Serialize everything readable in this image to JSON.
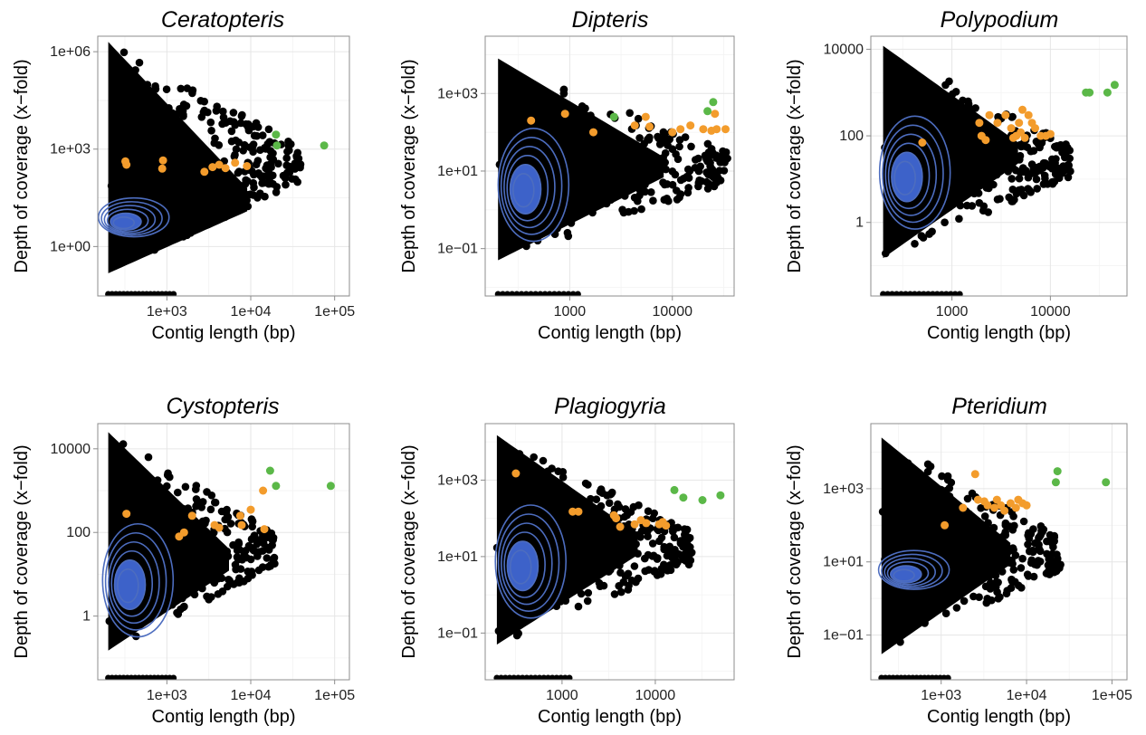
{
  "figure": {
    "colors": {
      "bulk": "#000000",
      "orange": "#f39c2c",
      "green": "#5bb848",
      "contour": "#4d6dbf",
      "contour_fill": "#3d62c9"
    }
  },
  "chart_data": [
    {
      "type": "scatter",
      "title": "Ceratopteris",
      "xlabel": "Contig length (bp)",
      "ylabel": "Depth of coverage (x−fold)",
      "log_x": true,
      "log_y": true,
      "xlim": [
        150,
        150000
      ],
      "ylim": [
        0.03,
        3000000
      ],
      "xticks": [
        {
          "v": 1000,
          "label": "1e+03"
        },
        {
          "v": 10000,
          "label": "1e+04"
        },
        {
          "v": 100000,
          "label": "1e+05"
        }
      ],
      "yticks": [
        {
          "v": 1,
          "label": "1e+00"
        },
        {
          "v": 1000,
          "label": "1e+03"
        },
        {
          "v": 1000000,
          "label": "1e+06"
        }
      ],
      "bulk": {
        "xmin": 200,
        "xmax": 40000,
        "ylo": 0.15,
        "yhi": 2000000,
        "peak_x": 250,
        "peak_y": 5
      },
      "orange": [
        [
          320,
          420
        ],
        [
          330,
          330
        ],
        [
          880,
          250
        ],
        [
          900,
          450
        ],
        [
          2800,
          200
        ],
        [
          3500,
          280
        ],
        [
          4200,
          330
        ],
        [
          5000,
          260
        ],
        [
          6500,
          380
        ],
        [
          9000,
          300
        ]
      ],
      "green": [
        [
          20000,
          2800
        ],
        [
          20500,
          1300
        ],
        [
          75000,
          1300
        ]
      ]
    },
    {
      "type": "scatter",
      "title": "Dipteris",
      "xlabel": "Contig length (bp)",
      "ylabel": "Depth of coverage (x−fold)",
      "log_x": true,
      "log_y": true,
      "xlim": [
        150,
        40000
      ],
      "ylim": [
        0.006,
        30000
      ],
      "xticks": [
        {
          "v": 1000,
          "label": "1000"
        },
        {
          "v": 10000,
          "label": "10000"
        }
      ],
      "yticks": [
        {
          "v": 0.1,
          "label": "1e−01"
        },
        {
          "v": 10,
          "label": "1e+01"
        },
        {
          "v": 1000,
          "label": "1e+03"
        }
      ],
      "bulk": {
        "xmin": 200,
        "xmax": 35000,
        "ylo": 0.05,
        "yhi": 8000,
        "peak_x": 300,
        "peak_y": 3
      },
      "orange": [
        [
          420,
          200
        ],
        [
          900,
          300
        ],
        [
          1700,
          100
        ],
        [
          4300,
          150
        ],
        [
          5500,
          250
        ],
        [
          6000,
          140
        ],
        [
          10000,
          100
        ],
        [
          12000,
          120
        ],
        [
          15000,
          150
        ],
        [
          20000,
          120
        ],
        [
          24000,
          110
        ],
        [
          26000,
          300
        ],
        [
          27000,
          120
        ],
        [
          33000,
          120
        ]
      ],
      "green": [
        [
          2700,
          250
        ],
        [
          22000,
          350
        ],
        [
          25000,
          600
        ]
      ]
    },
    {
      "type": "scatter",
      "title": "Polypodium",
      "xlabel": "Contig length (bp)",
      "ylabel": "Depth of coverage (x−fold)",
      "log_x": true,
      "log_y": true,
      "xlim": [
        150,
        60000
      ],
      "ylim": [
        0.02,
        20000
      ],
      "xticks": [
        {
          "v": 1000,
          "label": "1000"
        },
        {
          "v": 10000,
          "label": "10000"
        }
      ],
      "yticks": [
        {
          "v": 1,
          "label": "1"
        },
        {
          "v": 100,
          "label": "100"
        },
        {
          "v": 10000,
          "label": "10000"
        }
      ],
      "bulk": {
        "xmin": 200,
        "xmax": 16000,
        "ylo": 0.15,
        "yhi": 12000,
        "peak_x": 280,
        "peak_y": 10
      },
      "orange": [
        [
          500,
          70
        ],
        [
          1900,
          200
        ],
        [
          2000,
          100
        ],
        [
          2200,
          80
        ],
        [
          2400,
          300
        ],
        [
          2900,
          200
        ],
        [
          3500,
          300
        ],
        [
          4000,
          150
        ],
        [
          4200,
          90
        ],
        [
          4500,
          100
        ],
        [
          4800,
          200
        ],
        [
          5000,
          120
        ],
        [
          5200,
          400
        ],
        [
          5500,
          90
        ],
        [
          6000,
          300
        ],
        [
          6500,
          200
        ],
        [
          7000,
          150
        ],
        [
          8000,
          100
        ],
        [
          9000,
          100
        ],
        [
          10000,
          110
        ]
      ],
      "green": [
        [
          23000,
          1000
        ],
        [
          25000,
          1000
        ],
        [
          38000,
          1000
        ],
        [
          45000,
          1500
        ]
      ]
    },
    {
      "type": "scatter",
      "title": "Cystopteris",
      "xlabel": "Contig length (bp)",
      "ylabel": "Depth of coverage (x−fold)",
      "log_x": true,
      "log_y": true,
      "xlim": [
        150,
        150000
      ],
      "ylim": [
        0.03,
        40000
      ],
      "xticks": [
        {
          "v": 1000,
          "label": "1e+03"
        },
        {
          "v": 10000,
          "label": "1e+04"
        },
        {
          "v": 100000,
          "label": "1e+05"
        }
      ],
      "yticks": [
        {
          "v": 1,
          "label": "1"
        },
        {
          "v": 100,
          "label": "100"
        },
        {
          "v": 10000,
          "label": "10000"
        }
      ],
      "bulk": {
        "xmin": 200,
        "xmax": 20000,
        "ylo": 0.15,
        "yhi": 25000,
        "peak_x": 280,
        "peak_y": 5
      },
      "orange": [
        [
          330,
          280
        ],
        [
          1400,
          80
        ],
        [
          1600,
          100
        ],
        [
          2000,
          250
        ],
        [
          3700,
          150
        ],
        [
          4200,
          130
        ],
        [
          7500,
          250
        ],
        [
          7800,
          150
        ],
        [
          10000,
          350
        ],
        [
          14000,
          1000
        ],
        [
          14500,
          120
        ]
      ],
      "green": [
        [
          17000,
          3000
        ],
        [
          20000,
          1300
        ],
        [
          90000,
          1300
        ]
      ]
    },
    {
      "type": "scatter",
      "title": "Plagiogyria",
      "xlabel": "Contig length (bp)",
      "ylabel": "Depth of coverage (x−fold)",
      "log_x": true,
      "log_y": true,
      "xlim": [
        150,
        70000
      ],
      "ylim": [
        0.006,
        30000
      ],
      "xticks": [
        {
          "v": 1000,
          "label": "1000"
        },
        {
          "v": 10000,
          "label": "10000"
        }
      ],
      "yticks": [
        {
          "v": 0.1,
          "label": "1e−01"
        },
        {
          "v": 10,
          "label": "1e+01"
        },
        {
          "v": 1000,
          "label": "1e+03"
        }
      ],
      "bulk": {
        "xmin": 200,
        "xmax": 25000,
        "ylo": 0.05,
        "yhi": 15000,
        "peak_x": 300,
        "peak_y": 5
      },
      "orange": [
        [
          320,
          1500
        ],
        [
          1300,
          150
        ],
        [
          1500,
          150
        ],
        [
          3600,
          120
        ],
        [
          3800,
          100
        ],
        [
          4200,
          60
        ],
        [
          6000,
          70
        ],
        [
          7000,
          90
        ],
        [
          8000,
          75
        ],
        [
          11000,
          70
        ],
        [
          12000,
          80
        ],
        [
          13000,
          65
        ]
      ],
      "green": [
        [
          16000,
          550
        ],
        [
          20000,
          350
        ],
        [
          32000,
          300
        ],
        [
          50000,
          400
        ]
      ]
    },
    {
      "type": "scatter",
      "title": "Pteridium",
      "xlabel": "Contig length (bp)",
      "ylabel": "Depth of coverage (x−fold)",
      "log_x": true,
      "log_y": true,
      "xlim": [
        150,
        150000
      ],
      "ylim": [
        0.006,
        60000
      ],
      "xticks": [
        {
          "v": 1000,
          "label": "1e+03"
        },
        {
          "v": 10000,
          "label": "1e+04"
        },
        {
          "v": 100000,
          "label": "1e+05"
        }
      ],
      "yticks": [
        {
          "v": 0.1,
          "label": "1e−01"
        },
        {
          "v": 10,
          "label": "1e+01"
        },
        {
          "v": 1000,
          "label": "1e+03"
        }
      ],
      "bulk": {
        "xmin": 200,
        "xmax": 25000,
        "ylo": 0.03,
        "yhi": 25000,
        "peak_x": 300,
        "peak_y": 4
      },
      "orange": [
        [
          1100,
          100
        ],
        [
          1800,
          300
        ],
        [
          2500,
          2500
        ],
        [
          2700,
          500
        ],
        [
          3200,
          450
        ],
        [
          3500,
          350
        ],
        [
          4200,
          300
        ],
        [
          4500,
          500
        ],
        [
          5000,
          350
        ],
        [
          5500,
          250
        ],
        [
          6500,
          400
        ],
        [
          7500,
          300
        ],
        [
          8000,
          500
        ],
        [
          9000,
          400
        ],
        [
          10000,
          350
        ]
      ],
      "green": [
        [
          22000,
          1500
        ],
        [
          23000,
          3000
        ],
        [
          85000,
          1500
        ]
      ]
    }
  ]
}
